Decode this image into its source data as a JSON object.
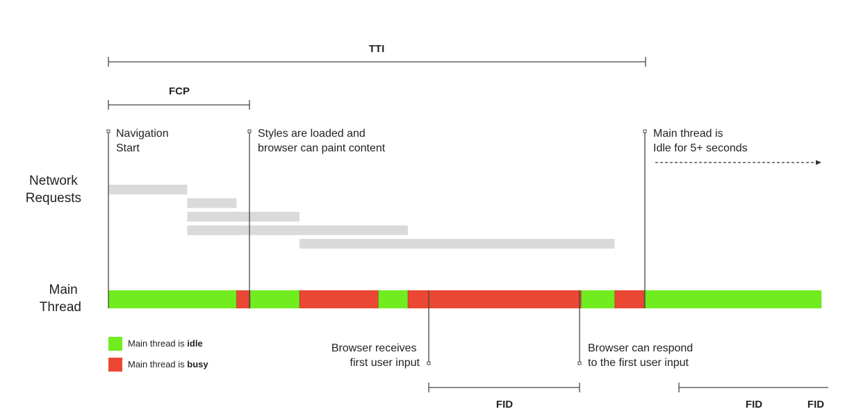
{
  "colors": {
    "idle": "#71ED1F",
    "busy": "#EA4833",
    "request": "#DADADA",
    "line": "#444444",
    "text": "#222222"
  },
  "metrics": {
    "tti": "TTI",
    "fcp": "FCP",
    "fid_main": "FID",
    "fid_right_1": "FID",
    "fid_right_2": "FID"
  },
  "row_labels": {
    "network": [
      "Network",
      "Requests"
    ],
    "main": [
      "Main",
      "Thread"
    ]
  },
  "annotations": {
    "navigation_start": [
      "Navigation",
      "Start"
    ],
    "styles_loaded": [
      "Styles are loaded and",
      "browser can paint content"
    ],
    "main_idle": [
      "Main thread is",
      "Idle for 5+ seconds"
    ],
    "user_input": [
      "Browser receives",
      "first user input"
    ],
    "can_respond": [
      "Browser can respond",
      "to the first user input"
    ]
  },
  "legend": {
    "idle": {
      "prefix": "Main thread is ",
      "emphasis": "idle"
    },
    "busy": {
      "prefix": "Main thread is ",
      "emphasis": "busy"
    }
  },
  "timeline": {
    "network_requests": [
      {
        "start": 0.0,
        "end": 0.4
      },
      {
        "start": 0.4,
        "end": 0.65
      },
      {
        "start": 0.4,
        "end": 0.97
      },
      {
        "start": 0.4,
        "end": 1.52
      },
      {
        "start": 0.97,
        "end": 2.57
      }
    ],
    "main_thread": [
      {
        "state": "idle",
        "start": 0.0,
        "end": 0.65
      },
      {
        "state": "busy",
        "start": 0.65,
        "end": 0.72
      },
      {
        "state": "idle",
        "start": 0.72,
        "end": 0.97
      },
      {
        "state": "busy",
        "start": 0.97,
        "end": 1.37
      },
      {
        "state": "idle",
        "start": 1.37,
        "end": 1.52
      },
      {
        "state": "busy",
        "start": 1.52,
        "end": 2.4
      },
      {
        "state": "idle",
        "start": 2.4,
        "end": 2.57
      },
      {
        "state": "busy",
        "start": 2.57,
        "end": 2.72
      },
      {
        "state": "idle",
        "start": 2.72,
        "end": 3.62
      }
    ],
    "events": {
      "navigation_start": 0.0,
      "fcp": 0.72,
      "first_input": 1.62,
      "response": 2.39,
      "tti": 2.73
    }
  }
}
